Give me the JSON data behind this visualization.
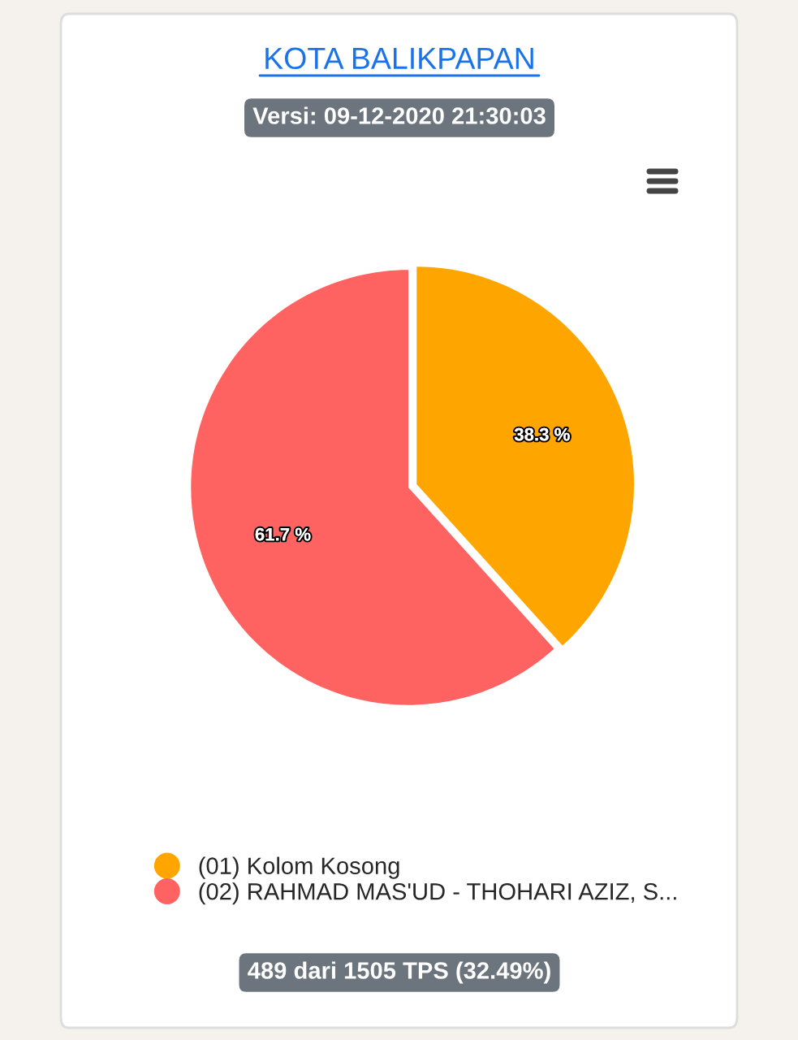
{
  "chart_data": {
    "type": "pie",
    "title": "KOTA BALIKPAPAN",
    "subtitle": "Versi: 09-12-2020 21:30:03",
    "categories": [
      "(01) Kolom Kosong",
      "(02) RAHMAD MAS'UD - THOHARI AZIZ, S..."
    ],
    "values": [
      38.3,
      61.7
    ],
    "colors": [
      "#ffa500",
      "#ff6361"
    ],
    "value_labels": [
      "38.3 %",
      "61.7 %"
    ],
    "legend": "bottom",
    "annotations": [
      "489 dari 1505 TPS (32.49%)"
    ]
  }
}
